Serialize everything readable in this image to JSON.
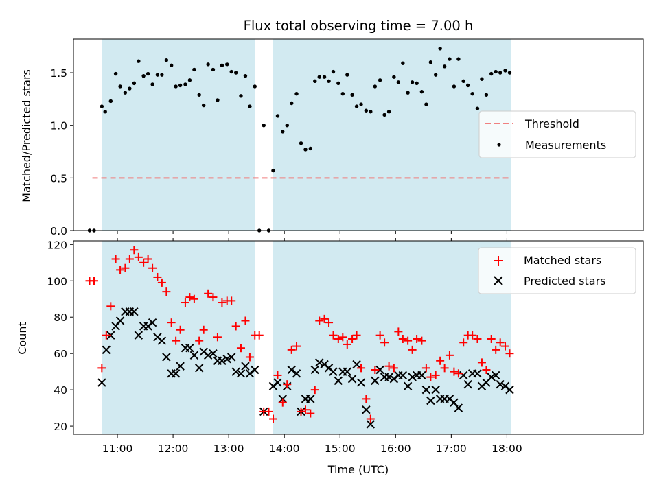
{
  "chart_data": [
    {
      "type": "scatter",
      "title": "Flux total observing time = 7.00 h",
      "ylabel": "Matched/Predicted stars",
      "xlabel": "",
      "xlim": [
        10.21,
        20.45
      ],
      "ylim": [
        0,
        1.82
      ],
      "x_tick_values": [
        11,
        12,
        13,
        14,
        15,
        16,
        17,
        18
      ],
      "y_tick_values": [
        0.0,
        0.5,
        1.0,
        1.5
      ],
      "y_tick_labels": [
        "0.0",
        "0.5",
        "1.0",
        "1.5"
      ],
      "shaded_intervals": [
        [
          10.72,
          13.47
        ],
        [
          13.8,
          18.07
        ]
      ],
      "shade_color": "#add8e6",
      "threshold": {
        "name": "Threshold",
        "value": 0.5,
        "x_range": [
          10.55,
          18.08
        ],
        "color": "#f08080"
      },
      "legend": {
        "placement": "right",
        "entries": [
          "Threshold",
          "Measurements"
        ]
      },
      "series": [
        {
          "name": "Measurements",
          "color": "#000000",
          "x": [
            10.5,
            10.58,
            10.72,
            10.78,
            10.88,
            10.97,
            11.05,
            11.14,
            11.22,
            11.3,
            11.38,
            11.47,
            11.55,
            11.63,
            11.72,
            11.8,
            11.88,
            11.97,
            12.05,
            12.13,
            12.22,
            12.3,
            12.38,
            12.47,
            12.55,
            12.63,
            12.72,
            12.8,
            12.88,
            12.97,
            13.05,
            13.13,
            13.22,
            13.3,
            13.38,
            13.47,
            13.55,
            13.63,
            13.72,
            13.8,
            13.88,
            13.97,
            14.05,
            14.13,
            14.22,
            14.3,
            14.38,
            14.47,
            14.55,
            14.63,
            14.72,
            14.8,
            14.88,
            14.97,
            15.05,
            15.13,
            15.22,
            15.3,
            15.38,
            15.47,
            15.55,
            15.63,
            15.72,
            15.8,
            15.88,
            15.97,
            16.05,
            16.13,
            16.22,
            16.3,
            16.38,
            16.47,
            16.55,
            16.63,
            16.72,
            16.8,
            16.88,
            16.97,
            17.05,
            17.13,
            17.22,
            17.3,
            17.38,
            17.47,
            17.55,
            17.63,
            17.72,
            17.8,
            17.88,
            17.97,
            18.05
          ],
          "y": [
            0.0,
            0.0,
            1.18,
            1.13,
            1.23,
            1.49,
            1.37,
            1.31,
            1.35,
            1.4,
            1.61,
            1.47,
            1.49,
            1.39,
            1.48,
            1.48,
            1.62,
            1.57,
            1.37,
            1.38,
            1.39,
            1.43,
            1.53,
            1.29,
            1.19,
            1.58,
            1.53,
            1.24,
            1.57,
            1.58,
            1.51,
            1.5,
            1.28,
            1.47,
            1.18,
            1.37,
            0.0,
            1.0,
            0.0,
            0.57,
            1.09,
            0.94,
            1.0,
            1.21,
            1.3,
            0.83,
            0.77,
            0.78,
            1.42,
            1.46,
            1.46,
            1.42,
            1.51,
            1.4,
            1.3,
            1.48,
            1.29,
            1.18,
            1.2,
            1.14,
            1.13,
            1.37,
            1.43,
            1.1,
            1.13,
            1.46,
            1.41,
            1.59,
            1.31,
            1.41,
            1.4,
            1.32,
            1.2,
            1.6,
            1.48,
            1.73,
            1.56,
            1.63,
            1.37,
            1.63,
            1.42,
            1.38,
            1.3,
            1.16,
            1.44,
            1.29,
            1.49,
            1.51,
            1.5,
            1.52,
            1.5
          ]
        }
      ]
    },
    {
      "type": "scatter",
      "title": "",
      "ylabel": "Count",
      "xlabel": "Time (UTC)",
      "xlim": [
        10.21,
        20.45
      ],
      "ylim": [
        15.5,
        122.0
      ],
      "x_tick_values": [
        11,
        12,
        13,
        14,
        15,
        16,
        17,
        18
      ],
      "x_tick_labels": [
        "11:00",
        "12:00",
        "13:00",
        "14:00",
        "15:00",
        "16:00",
        "17:00",
        "18:00"
      ],
      "y_tick_values": [
        20,
        40,
        60,
        80,
        100,
        120
      ],
      "y_tick_labels": [
        "20",
        "40",
        "60",
        "80",
        "100",
        "120"
      ],
      "shaded_intervals": [
        [
          10.72,
          13.47
        ],
        [
          13.8,
          18.07
        ]
      ],
      "shade_color": "#add8e6",
      "legend": {
        "placement": "top-right",
        "entries": [
          "Matched stars",
          "Predicted stars"
        ]
      },
      "series": [
        {
          "name": "Matched stars",
          "marker": "plus",
          "color": "#ff0000",
          "x": [
            10.5,
            10.58,
            10.72,
            10.8,
            10.88,
            10.97,
            11.05,
            11.14,
            11.22,
            11.3,
            11.38,
            11.47,
            11.55,
            11.63,
            11.72,
            11.8,
            11.88,
            11.97,
            12.05,
            12.13,
            12.22,
            12.3,
            12.38,
            12.47,
            12.55,
            12.63,
            12.72,
            12.8,
            12.88,
            12.97,
            13.05,
            13.13,
            13.22,
            13.3,
            13.38,
            13.47,
            13.55,
            13.63,
            13.72,
            13.8,
            13.88,
            13.97,
            14.05,
            14.13,
            14.22,
            14.3,
            14.38,
            14.47,
            14.55,
            14.63,
            14.72,
            14.8,
            14.88,
            14.97,
            15.05,
            15.13,
            15.22,
            15.3,
            15.38,
            15.47,
            15.55,
            15.63,
            15.72,
            15.8,
            15.88,
            15.97,
            16.05,
            16.13,
            16.22,
            16.3,
            16.38,
            16.47,
            16.55,
            16.63,
            16.72,
            16.8,
            16.88,
            16.97,
            17.05,
            17.13,
            17.22,
            17.3,
            17.38,
            17.47,
            17.55,
            17.63,
            17.72,
            17.8,
            17.88,
            17.97,
            18.05
          ],
          "y": [
            100,
            100,
            52,
            70,
            86,
            112,
            106,
            107,
            112,
            117,
            113,
            110,
            112,
            107,
            102,
            99,
            94,
            77,
            67,
            73,
            88,
            91,
            90,
            67,
            73,
            93,
            91,
            69,
            88,
            89,
            89,
            75,
            63,
            78,
            58,
            70,
            70,
            28,
            28,
            24,
            48,
            33,
            43,
            62,
            64,
            28,
            29,
            27,
            40,
            78,
            79,
            77,
            70,
            68,
            69,
            65,
            68,
            70,
            52,
            35,
            24,
            51,
            70,
            66,
            53,
            52,
            72,
            68,
            67,
            62,
            68,
            67,
            52,
            47,
            48,
            56,
            52,
            59,
            50,
            49,
            66,
            70,
            70,
            68,
            55,
            51,
            68,
            62,
            66,
            64,
            60
          ]
        },
        {
          "name": "Predicted stars",
          "marker": "x",
          "color": "#000000",
          "x": [
            10.72,
            10.8,
            10.88,
            10.97,
            11.05,
            11.14,
            11.22,
            11.3,
            11.38,
            11.47,
            11.55,
            11.63,
            11.72,
            11.8,
            11.88,
            11.97,
            12.05,
            12.13,
            12.22,
            12.3,
            12.38,
            12.47,
            12.55,
            12.63,
            12.72,
            12.8,
            12.88,
            12.97,
            13.05,
            13.13,
            13.22,
            13.3,
            13.38,
            13.47,
            13.63,
            13.8,
            13.88,
            13.97,
            14.05,
            14.13,
            14.22,
            14.3,
            14.38,
            14.47,
            14.55,
            14.63,
            14.72,
            14.8,
            14.88,
            14.97,
            15.05,
            15.13,
            15.22,
            15.3,
            15.38,
            15.47,
            15.55,
            15.63,
            15.72,
            15.8,
            15.88,
            15.97,
            16.05,
            16.13,
            16.22,
            16.3,
            16.38,
            16.47,
            16.55,
            16.63,
            16.72,
            16.8,
            16.88,
            16.97,
            17.05,
            17.13,
            17.22,
            17.3,
            17.38,
            17.47,
            17.55,
            17.63,
            17.72,
            17.8,
            17.88,
            17.97,
            18.05
          ],
          "y": [
            44,
            62,
            70,
            75,
            78,
            83,
            83,
            83,
            70,
            75,
            75,
            77,
            69,
            67,
            58,
            49,
            49,
            53,
            63,
            63,
            59,
            52,
            61,
            59,
            60,
            56,
            56,
            57,
            58,
            50,
            49,
            53,
            49,
            51,
            28,
            42,
            44,
            35,
            42,
            51,
            49,
            28,
            35,
            35,
            51,
            55,
            54,
            52,
            50,
            45,
            50,
            50,
            46,
            54,
            44,
            29,
            21,
            45,
            51,
            47,
            47,
            46,
            48,
            48,
            42,
            47,
            48,
            48,
            40,
            34,
            40,
            35,
            35,
            35,
            33,
            30,
            48,
            43,
            49,
            49,
            42,
            44,
            47,
            48,
            43,
            42,
            40
          ]
        }
      ]
    }
  ]
}
